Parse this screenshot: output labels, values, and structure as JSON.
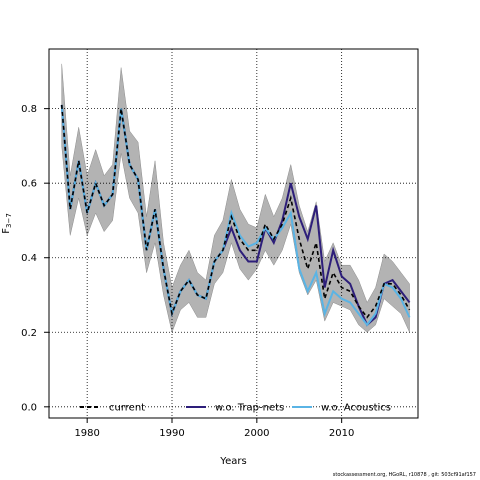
{
  "chart_data": {
    "type": "line",
    "title": "",
    "xlabel": "Years",
    "ylabel": "F3-7",
    "ylabel_main": "F",
    "ylabel_sub": "3−7",
    "xlim": [
      1975.5,
      2019
    ],
    "ylim": [
      -0.03,
      0.96
    ],
    "x_ticks": [
      1980,
      1990,
      2000,
      2010
    ],
    "y_ticks": [
      "0.0",
      "0.2",
      "0.4",
      "0.6",
      "0.8"
    ],
    "y_tick_values": [
      0.0,
      0.2,
      0.4,
      0.6,
      0.8
    ],
    "grid": "dotted, major ticks",
    "legend_position": "bottom-center",
    "band": {
      "name": "confidence interval",
      "color": "#b3b3b3",
      "x": [
        1977,
        1978,
        1979,
        1980,
        1981,
        1982,
        1983,
        1984,
        1985,
        1986,
        1987,
        1988,
        1989,
        1990,
        1991,
        1992,
        1993,
        1994,
        1995,
        1996,
        1997,
        1998,
        1999,
        2000,
        2001,
        2002,
        2003,
        2004,
        2005,
        2006,
        2007,
        2008,
        2009,
        2010,
        2011,
        2012,
        2013,
        2014,
        2015,
        2016,
        2017,
        2018
      ],
      "lower": [
        0.7,
        0.46,
        0.56,
        0.46,
        0.52,
        0.47,
        0.5,
        0.68,
        0.56,
        0.52,
        0.36,
        0.44,
        0.3,
        0.2,
        0.26,
        0.28,
        0.24,
        0.24,
        0.33,
        0.36,
        0.44,
        0.37,
        0.34,
        0.37,
        0.42,
        0.38,
        0.42,
        0.49,
        0.36,
        0.3,
        0.34,
        0.23,
        0.28,
        0.27,
        0.26,
        0.22,
        0.2,
        0.22,
        0.29,
        0.27,
        0.25,
        0.2
      ],
      "upper": [
        0.92,
        0.62,
        0.75,
        0.62,
        0.69,
        0.62,
        0.65,
        0.91,
        0.74,
        0.71,
        0.51,
        0.66,
        0.44,
        0.32,
        0.38,
        0.42,
        0.36,
        0.34,
        0.46,
        0.5,
        0.61,
        0.53,
        0.49,
        0.48,
        0.57,
        0.51,
        0.56,
        0.65,
        0.54,
        0.47,
        0.55,
        0.39,
        0.44,
        0.38,
        0.38,
        0.34,
        0.28,
        0.32,
        0.41,
        0.39,
        0.36,
        0.33
      ]
    },
    "series": [
      {
        "name": "current",
        "color": "#000000",
        "dash": "4,3",
        "x": [
          1977,
          1978,
          1979,
          1980,
          1981,
          1982,
          1983,
          1984,
          1985,
          1986,
          1987,
          1988,
          1989,
          1990,
          1991,
          1992,
          1993,
          1994,
          1995,
          1996,
          1997,
          1998,
          1999,
          2000,
          2001,
          2002,
          2003,
          2004,
          2005,
          2006,
          2007,
          2008,
          2009,
          2010,
          2011,
          2012,
          2013,
          2014,
          2015,
          2016,
          2017,
          2018
        ],
        "values": [
          0.81,
          0.53,
          0.66,
          0.52,
          0.6,
          0.54,
          0.57,
          0.8,
          0.65,
          0.61,
          0.42,
          0.53,
          0.37,
          0.25,
          0.31,
          0.34,
          0.3,
          0.29,
          0.39,
          0.42,
          0.51,
          0.45,
          0.42,
          0.42,
          0.49,
          0.45,
          0.49,
          0.56,
          0.45,
          0.37,
          0.44,
          0.29,
          0.36,
          0.32,
          0.31,
          0.27,
          0.24,
          0.27,
          0.33,
          0.33,
          0.3,
          0.26
        ]
      },
      {
        "name": "w.o. Trap-nets",
        "color": "#2d1e7a",
        "dash": "",
        "x": [
          1977,
          1978,
          1979,
          1980,
          1981,
          1982,
          1983,
          1984,
          1985,
          1986,
          1987,
          1988,
          1989,
          1990,
          1991,
          1992,
          1993,
          1994,
          1995,
          1996,
          1997,
          1998,
          1999,
          2000,
          2001,
          2002,
          2003,
          2004,
          2005,
          2006,
          2007,
          2008,
          2009,
          2010,
          2011,
          2012,
          2013,
          2014,
          2015,
          2016,
          2017,
          2018
        ],
        "values": [
          0.81,
          0.53,
          0.66,
          0.52,
          0.6,
          0.54,
          0.57,
          0.8,
          0.65,
          0.61,
          0.42,
          0.53,
          0.37,
          0.25,
          0.31,
          0.34,
          0.3,
          0.29,
          0.39,
          0.42,
          0.48,
          0.42,
          0.39,
          0.39,
          0.48,
          0.44,
          0.5,
          0.6,
          0.51,
          0.45,
          0.54,
          0.32,
          0.42,
          0.35,
          0.33,
          0.27,
          0.22,
          0.24,
          0.33,
          0.34,
          0.31,
          0.28
        ]
      },
      {
        "name": "w.o. Acoustics",
        "color": "#5ab4e5",
        "dash": "",
        "x": [
          1977,
          1978,
          1979,
          1980,
          1981,
          1982,
          1983,
          1984,
          1985,
          1986,
          1987,
          1988,
          1989,
          1990,
          1991,
          1992,
          1993,
          1994,
          1995,
          1996,
          1997,
          1998,
          1999,
          2000,
          2001,
          2002,
          2003,
          2004,
          2005,
          2006,
          2007,
          2008,
          2009,
          2010,
          2011,
          2012,
          2013,
          2014,
          2015,
          2016,
          2017,
          2018
        ],
        "values": [
          0.81,
          0.53,
          0.66,
          0.52,
          0.6,
          0.54,
          0.57,
          0.8,
          0.65,
          0.61,
          0.42,
          0.53,
          0.37,
          0.25,
          0.31,
          0.34,
          0.3,
          0.29,
          0.39,
          0.42,
          0.52,
          0.46,
          0.43,
          0.44,
          0.48,
          0.45,
          0.48,
          0.52,
          0.37,
          0.31,
          0.36,
          0.25,
          0.31,
          0.29,
          0.28,
          0.25,
          0.22,
          0.25,
          0.33,
          0.32,
          0.29,
          0.24
        ]
      }
    ]
  },
  "footer_text": "stockassessment.org, HGoRL, r10878 , git: 503cf91af157"
}
